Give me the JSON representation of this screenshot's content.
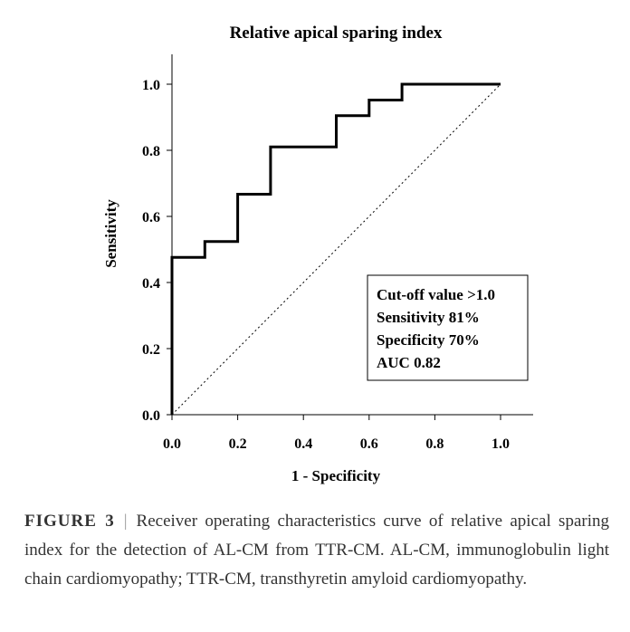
{
  "chart_data": {
    "type": "line",
    "title": "Relative apical sparing index",
    "xlabel": "1 - Specificity",
    "ylabel": "Sensitivity",
    "xlim": [
      0,
      1.05
    ],
    "ylim": [
      0,
      1.05
    ],
    "xticks": [
      "0.0",
      "0.2",
      "0.4",
      "0.6",
      "0.8",
      "1.0"
    ],
    "yticks": [
      "0.0",
      "0.2",
      "0.4",
      "0.6",
      "0.8",
      "1.0"
    ],
    "grid": false,
    "series": [
      {
        "style": "step",
        "x": [
          0,
          0,
          0.1,
          0.1,
          0.2,
          0.2,
          0.3,
          0.3,
          0.5,
          0.5,
          0.6,
          0.6,
          0.7,
          0.7,
          1.0
        ],
        "y": [
          0,
          0.476,
          0.476,
          0.524,
          0.524,
          0.667,
          0.667,
          0.81,
          0.81,
          0.905,
          0.905,
          0.952,
          0.952,
          1.0,
          1.0
        ]
      },
      {
        "style": "dotted-reference",
        "x": [
          0,
          1.0
        ],
        "y": [
          0,
          1.0
        ]
      }
    ],
    "annotation": {
      "lines": [
        "Cut-off value >1.0",
        "Sensitivity 81%",
        "Specificity 70%",
        "AUC 0.82"
      ],
      "placement": "bottom-right"
    }
  },
  "caption": {
    "label": "FIGURE 3",
    "separator": "|",
    "text": "Receiver operating characteristics curve of relative apical sparing index for the detection of AL-CM from TTR-CM. AL-CM, immunoglobulin light chain cardiomyopathy; TTR-CM, transthyretin amyloid cardiomyopathy."
  }
}
